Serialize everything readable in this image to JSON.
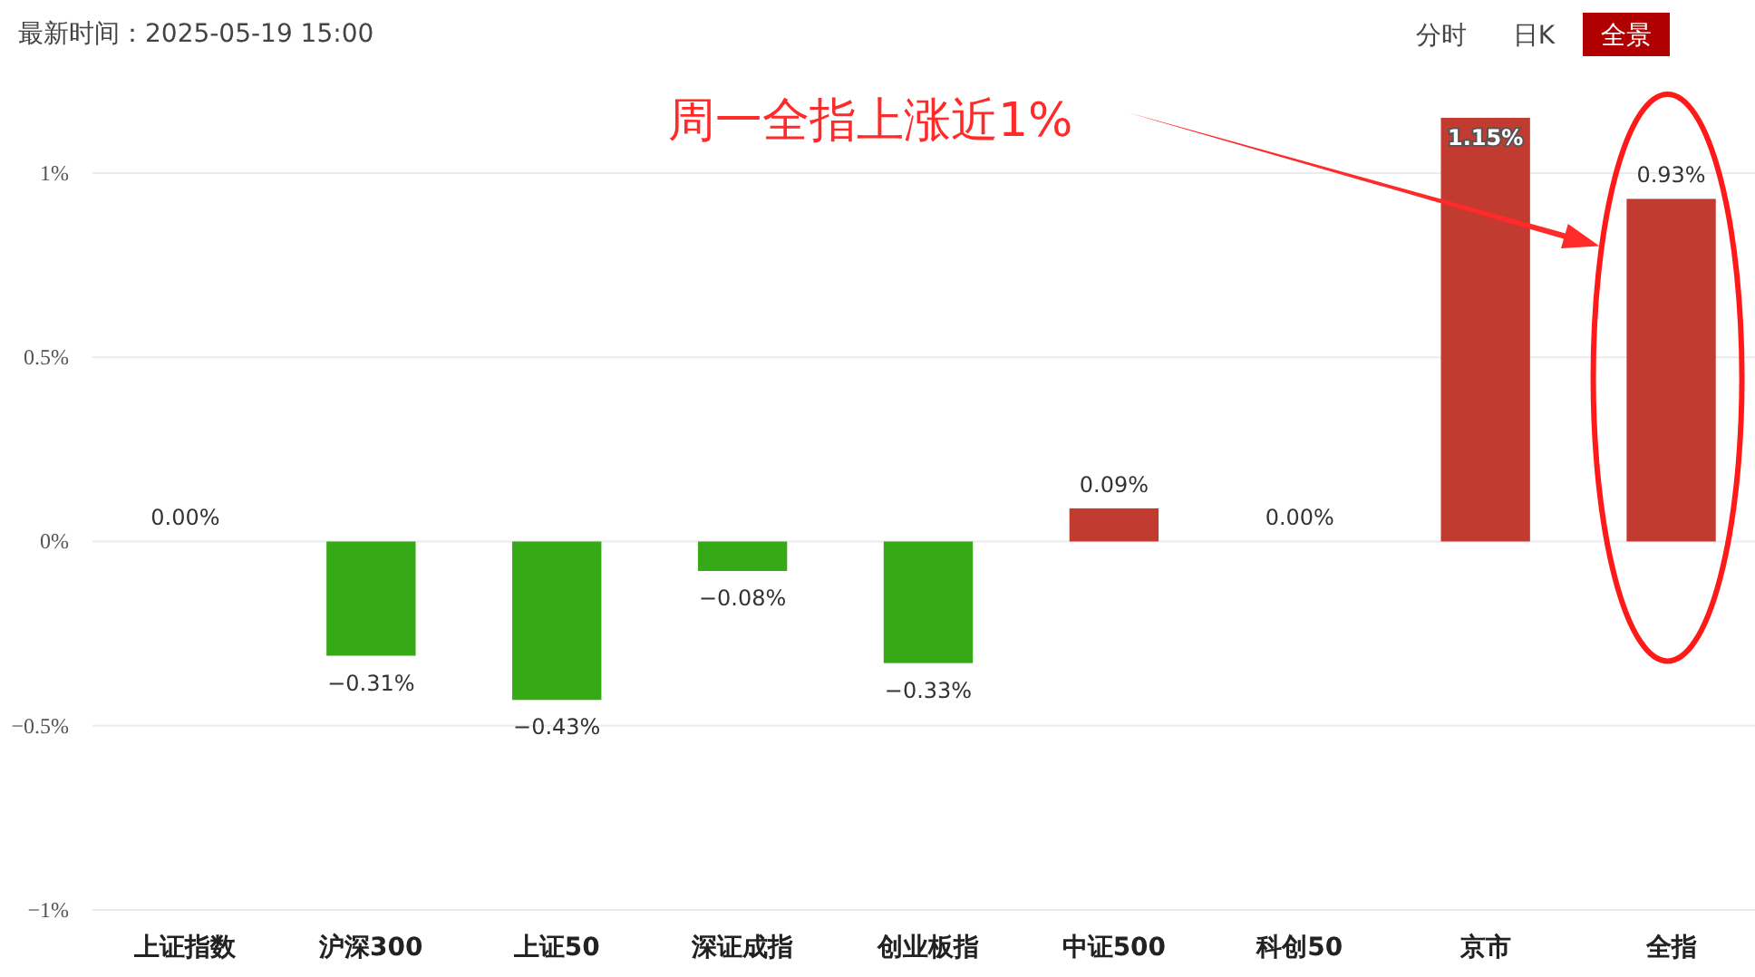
{
  "chart_data": {
    "type": "bar",
    "categories": [
      "上证指数",
      "沪深300",
      "上证50",
      "深证成指",
      "创业板指",
      "中证500",
      "科创50",
      "京市",
      "全指"
    ],
    "values": [
      0,
      -0.31,
      -0.43,
      -0.08,
      -0.33,
      0.09,
      0,
      1.15,
      0.93
    ],
    "colors": [
      "#c23b30",
      "#35a916",
      "#35a916",
      "#35a916",
      "#35a916",
      "#c23b30",
      "#c23b30",
      "#c23b30",
      "#c23b30"
    ],
    "value_labels": [
      "0.00%",
      "−0.31%",
      "−0.43%",
      "−0.08%",
      "−0.33%",
      "0.09%",
      "0.00%",
      "1.15%",
      "0.93%"
    ],
    "ylim": [
      -1,
      1.15
    ],
    "yticks": [
      {
        "value": -1,
        "label": "−1%"
      },
      {
        "value": -0.5,
        "label": "−0.5%"
      },
      {
        "value": 0,
        "label": "0%"
      },
      {
        "value": 0.5,
        "label": "0.5%"
      },
      {
        "value": 1,
        "label": "1%"
      }
    ],
    "grid": "y",
    "annotations": [
      "最新时间：2025-05-19 15:00",
      "分时",
      "日K",
      "全景",
      "周一全指上涨近1%"
    ]
  }
}
